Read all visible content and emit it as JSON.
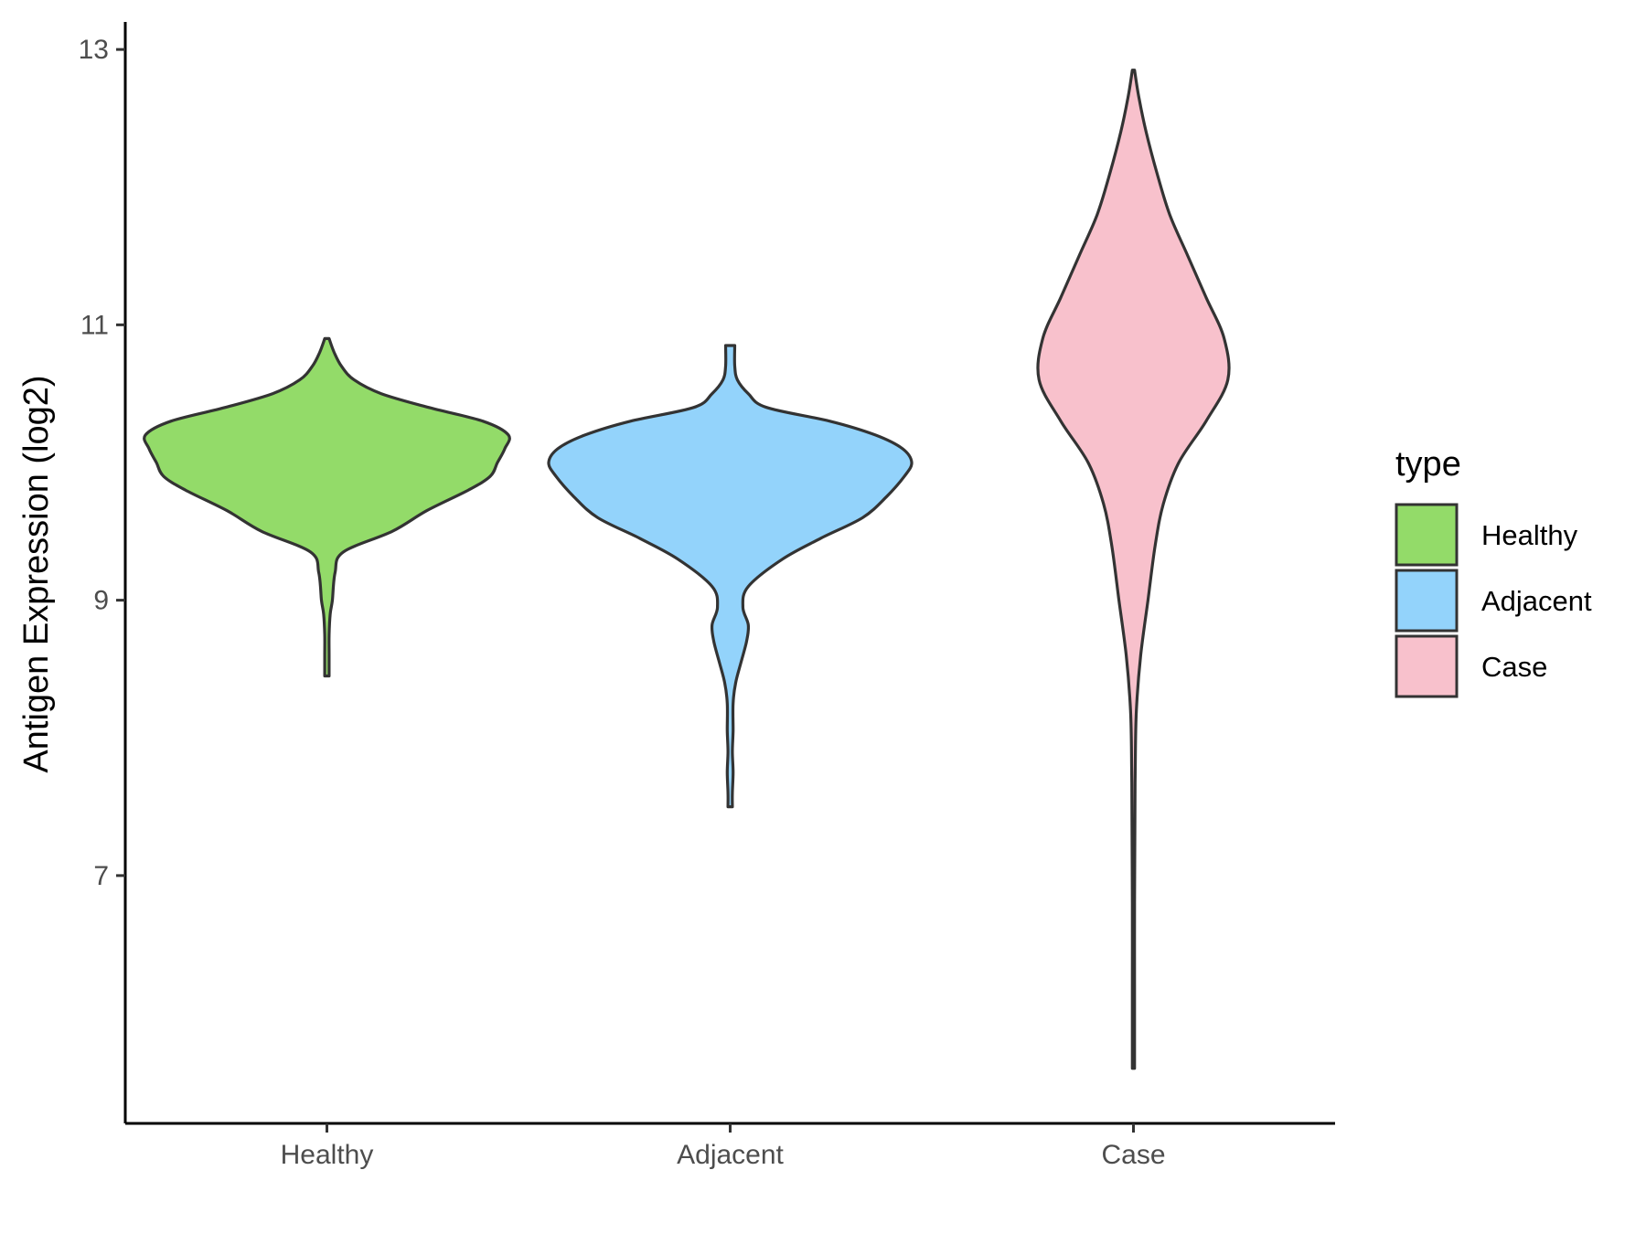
{
  "chart_data": {
    "type": "violin",
    "title": "",
    "xlabel": "",
    "ylabel": "Antigen Expression (log2)",
    "ylim": [
      5.2,
      13.2
    ],
    "yticks": [
      7,
      9,
      11,
      13
    ],
    "categories": [
      "Healthy",
      "Adjacent",
      "Case"
    ],
    "grid": false,
    "legend": {
      "title": "type",
      "position": "right"
    },
    "series": [
      {
        "name": "Healthy",
        "color": "#93DB69",
        "min": 8.45,
        "max": 10.9,
        "density": [
          [
            8.45,
            0.012
          ],
          [
            8.6,
            0.012
          ],
          [
            8.75,
            0.012
          ],
          [
            8.9,
            0.018
          ],
          [
            9.0,
            0.03
          ],
          [
            9.2,
            0.045
          ],
          [
            9.35,
            0.09
          ],
          [
            9.5,
            0.36
          ],
          [
            9.65,
            0.55
          ],
          [
            9.8,
            0.78
          ],
          [
            9.9,
            0.9
          ],
          [
            10.0,
            0.94
          ],
          [
            10.1,
            0.98
          ],
          [
            10.2,
            1.0
          ],
          [
            10.3,
            0.86
          ],
          [
            10.4,
            0.56
          ],
          [
            10.5,
            0.3
          ],
          [
            10.6,
            0.15
          ],
          [
            10.7,
            0.08
          ],
          [
            10.8,
            0.04
          ],
          [
            10.9,
            0.012
          ]
        ]
      },
      {
        "name": "Adjacent",
        "color": "#93D3FB",
        "min": 7.5,
        "max": 10.85,
        "density": [
          [
            7.5,
            0.012
          ],
          [
            7.6,
            0.012
          ],
          [
            7.75,
            0.016
          ],
          [
            7.9,
            0.012
          ],
          [
            8.05,
            0.016
          ],
          [
            8.25,
            0.016
          ],
          [
            8.4,
            0.03
          ],
          [
            8.55,
            0.06
          ],
          [
            8.7,
            0.09
          ],
          [
            8.82,
            0.1
          ],
          [
            8.95,
            0.07
          ],
          [
            9.1,
            0.1
          ],
          [
            9.3,
            0.29
          ],
          [
            9.45,
            0.5
          ],
          [
            9.6,
            0.73
          ],
          [
            9.75,
            0.86
          ],
          [
            9.9,
            0.96
          ],
          [
            10.0,
            1.0
          ],
          [
            10.1,
            0.95
          ],
          [
            10.2,
            0.8
          ],
          [
            10.3,
            0.55
          ],
          [
            10.4,
            0.2
          ],
          [
            10.5,
            0.1
          ],
          [
            10.6,
            0.04
          ],
          [
            10.7,
            0.025
          ],
          [
            10.85,
            0.025
          ]
        ]
      },
      {
        "name": "Case",
        "color": "#F8C1CC",
        "min": 5.6,
        "max": 12.85,
        "density": [
          [
            5.6,
            0.006
          ],
          [
            6.2,
            0.006
          ],
          [
            6.8,
            0.006
          ],
          [
            7.4,
            0.008
          ],
          [
            7.8,
            0.01
          ],
          [
            8.2,
            0.016
          ],
          [
            8.6,
            0.04
          ],
          [
            9.0,
            0.08
          ],
          [
            9.4,
            0.12
          ],
          [
            9.7,
            0.165
          ],
          [
            10.0,
            0.25
          ],
          [
            10.3,
            0.4
          ],
          [
            10.6,
            0.52
          ],
          [
            10.9,
            0.5
          ],
          [
            11.2,
            0.4
          ],
          [
            11.5,
            0.3
          ],
          [
            11.8,
            0.2
          ],
          [
            12.1,
            0.13
          ],
          [
            12.4,
            0.07
          ],
          [
            12.65,
            0.03
          ],
          [
            12.85,
            0.006
          ]
        ]
      }
    ]
  }
}
